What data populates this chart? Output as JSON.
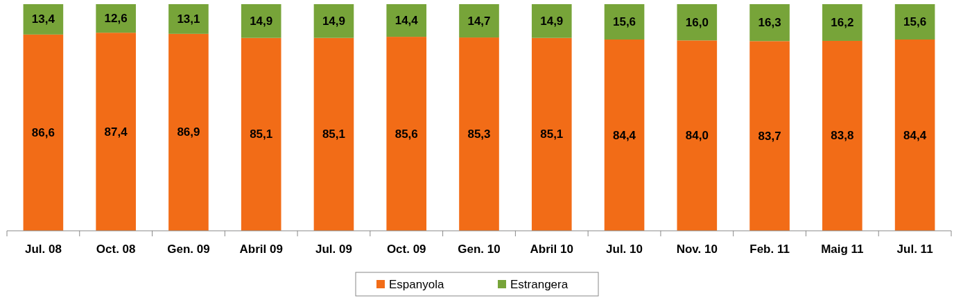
{
  "chart_data": {
    "type": "bar",
    "stacked": true,
    "categories": [
      "Jul. 08",
      "Oct. 08",
      "Gen. 09",
      "Abril 09",
      "Jul. 09",
      "Oct. 09",
      "Gen. 10",
      "Abril 10",
      "Jul. 10",
      "Nov. 10",
      "Feb. 11",
      "Maig 11",
      "Jul. 11"
    ],
    "series": [
      {
        "name": "Espanyola",
        "color": "#f26c17",
        "values": [
          86.6,
          87.4,
          86.9,
          85.1,
          85.1,
          85.6,
          85.3,
          85.1,
          84.4,
          84.0,
          83.7,
          83.8,
          84.4
        ],
        "value_labels": [
          "86,6",
          "87,4",
          "86,9",
          "85,1",
          "85,1",
          "85,6",
          "85,3",
          "85,1",
          "84,4",
          "84,0",
          "83,7",
          "83,8",
          "84,4"
        ]
      },
      {
        "name": "Estrangera",
        "color": "#77a439",
        "values": [
          13.4,
          12.6,
          13.1,
          14.9,
          14.9,
          14.4,
          14.7,
          14.9,
          15.6,
          16.0,
          16.3,
          16.2,
          15.6
        ],
        "value_labels": [
          "13,4",
          "12,6",
          "13,1",
          "14,9",
          "14,9",
          "14,4",
          "14,7",
          "14,9",
          "15,6",
          "16,0",
          "16,3",
          "16,2",
          "15,6"
        ]
      }
    ],
    "legend": "bottom"
  }
}
